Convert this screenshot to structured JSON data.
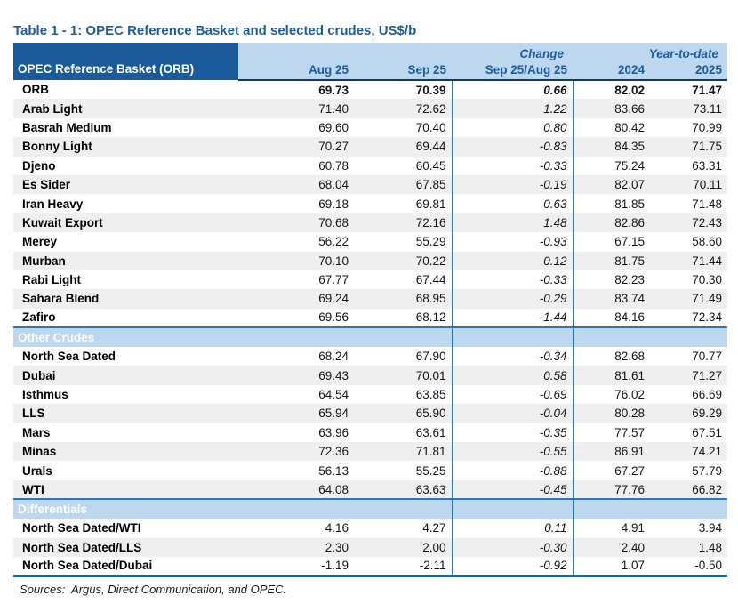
{
  "title": "Table 1 - 1: OPEC Reference Basket and selected crudes, US$/b",
  "colors": {
    "dark_blue": "#1B5A9B",
    "light_blue": "#BDD7EE",
    "header_text": "#1F5C9B",
    "stripe_gray": "#EFEFEF",
    "divider_blue": "#2E75B5",
    "header_underline": "#17365D"
  },
  "table": {
    "corner_header": "OPEC Reference Basket (ORB)",
    "group_headers": {
      "change": "Change",
      "ytd": "Year-to-date"
    },
    "columns": [
      "Aug 25",
      "Sep 25",
      "Sep 25/Aug 25",
      "2024",
      "2025"
    ],
    "sections": [
      {
        "label": null,
        "rows": [
          {
            "name": "ORB",
            "bold": true,
            "values": [
              "69.73",
              "70.39",
              "0.66",
              "82.02",
              "71.47"
            ]
          },
          {
            "name": "Arab Light",
            "bold": false,
            "values": [
              "71.40",
              "72.62",
              "1.22",
              "83.66",
              "73.11"
            ]
          },
          {
            "name": "Basrah Medium",
            "bold": false,
            "values": [
              "69.60",
              "70.40",
              "0.80",
              "80.42",
              "70.99"
            ]
          },
          {
            "name": "Bonny Light",
            "bold": false,
            "values": [
              "70.27",
              "69.44",
              "-0.83",
              "84.35",
              "71.75"
            ]
          },
          {
            "name": "Djeno",
            "bold": false,
            "values": [
              "60.78",
              "60.45",
              "-0.33",
              "75.24",
              "63.31"
            ]
          },
          {
            "name": "Es Sider",
            "bold": false,
            "values": [
              "68.04",
              "67.85",
              "-0.19",
              "82.07",
              "70.11"
            ]
          },
          {
            "name": "Iran Heavy",
            "bold": false,
            "values": [
              "69.18",
              "69.81",
              "0.63",
              "81.85",
              "71.48"
            ]
          },
          {
            "name": "Kuwait Export",
            "bold": false,
            "values": [
              "70.68",
              "72.16",
              "1.48",
              "82.86",
              "72.43"
            ]
          },
          {
            "name": "Merey",
            "bold": false,
            "values": [
              "56.22",
              "55.29",
              "-0.93",
              "67.15",
              "58.60"
            ]
          },
          {
            "name": "Murban",
            "bold": false,
            "values": [
              "70.10",
              "70.22",
              "0.12",
              "81.75",
              "71.44"
            ]
          },
          {
            "name": "Rabi Light",
            "bold": false,
            "values": [
              "67.77",
              "67.44",
              "-0.33",
              "82.23",
              "70.30"
            ]
          },
          {
            "name": "Sahara Blend",
            "bold": false,
            "values": [
              "69.24",
              "68.95",
              "-0.29",
              "83.74",
              "71.49"
            ]
          },
          {
            "name": "Zafiro",
            "bold": false,
            "values": [
              "69.56",
              "68.12",
              "-1.44",
              "84.16",
              "72.34"
            ]
          }
        ]
      },
      {
        "label": "Other Crudes",
        "rows": [
          {
            "name": "North Sea Dated",
            "bold": false,
            "values": [
              "68.24",
              "67.90",
              "-0.34",
              "82.68",
              "70.77"
            ]
          },
          {
            "name": "Dubai",
            "bold": false,
            "values": [
              "69.43",
              "70.01",
              "0.58",
              "81.61",
              "71.27"
            ]
          },
          {
            "name": "Isthmus",
            "bold": false,
            "values": [
              "64.54",
              "63.85",
              "-0.69",
              "76.02",
              "66.69"
            ]
          },
          {
            "name": "LLS",
            "bold": false,
            "values": [
              "65.94",
              "65.90",
              "-0.04",
              "80.28",
              "69.29"
            ]
          },
          {
            "name": "Mars",
            "bold": false,
            "values": [
              "63.96",
              "63.61",
              "-0.35",
              "77.57",
              "67.51"
            ]
          },
          {
            "name": "Minas",
            "bold": false,
            "values": [
              "72.36",
              "71.81",
              "-0.55",
              "86.91",
              "74.21"
            ]
          },
          {
            "name": "Urals",
            "bold": false,
            "values": [
              "56.13",
              "55.25",
              "-0.88",
              "67.27",
              "57.79"
            ]
          },
          {
            "name": "WTI",
            "bold": false,
            "values": [
              "64.08",
              "63.63",
              "-0.45",
              "77.76",
              "66.82"
            ]
          }
        ]
      },
      {
        "label": "Differentials",
        "rows": [
          {
            "name": "North Sea Dated/WTI",
            "bold": false,
            "values": [
              "4.16",
              "4.27",
              "0.11",
              "4.91",
              "3.94"
            ]
          },
          {
            "name": "North Sea Dated/LLS",
            "bold": false,
            "values": [
              "2.30",
              "2.00",
              "-0.30",
              "2.40",
              "1.48"
            ]
          },
          {
            "name": "North Sea Dated/Dubai",
            "bold": false,
            "values": [
              "-1.19",
              "-2.11",
              "-0.92",
              "1.07",
              "-0.50"
            ]
          }
        ]
      }
    ]
  },
  "footer": {
    "sources": "Sources:  Argus, Direct Communication, and OPEC."
  }
}
